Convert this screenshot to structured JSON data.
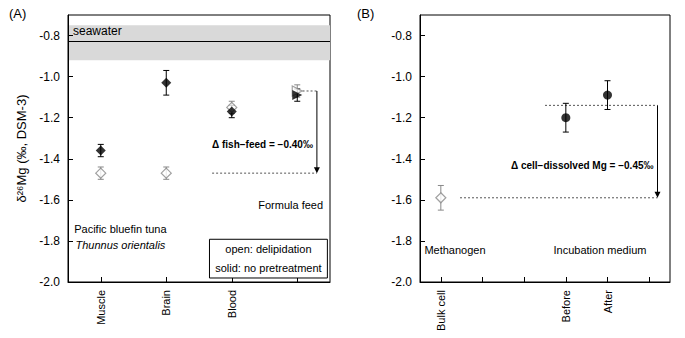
{
  "chart_data": [
    {
      "type": "scatter",
      "title": "(A)",
      "y_label": "δ²⁶Mg (‰, DSM-3)",
      "categories": [
        "Muscle",
        "Brain",
        "Blood",
        null
      ],
      "ylim": [
        -2.0,
        -0.7
      ],
      "yticks": [
        {
          "value": -2.0,
          "label": "-2.0"
        },
        -1.8,
        -1.6,
        -1.4,
        -1.2,
        {
          "value": -1.0,
          "label": "-1.0"
        },
        -0.8
      ],
      "grid": false,
      "legend": "lower right",
      "series": [
        {
          "name": "open: delipidation",
          "marker": "diamond_open",
          "color": "#888888",
          "values": [
            -1.47,
            -1.47,
            -1.15,
            null
          ],
          "errors": [
            0.03,
            0.03,
            0.03,
            null
          ]
        },
        {
          "name": "solid: no pretreatment",
          "marker": "diamond",
          "color": "#000000",
          "values": [
            -1.36,
            -1.03,
            -1.17,
            null
          ],
          "errors": [
            0.03,
            0.06,
            0.03,
            null
          ]
        },
        {
          "marker": "triangle_right_open",
          "color": "#888888",
          "values": [
            null,
            null,
            null,
            -1.07
          ],
          "errors": [
            null,
            null,
            null,
            0.03
          ]
        },
        {
          "marker": "triangle_right",
          "color": "#000000",
          "values": [
            null,
            null,
            null,
            -1.09
          ],
          "errors": [
            null,
            null,
            null,
            0.03
          ]
        }
      ],
      "band": {
        "label": "seawater",
        "value": -0.83,
        "low": -0.92,
        "high": -0.75
      },
      "delta": {
        "label": "Δ fish−feed = −0.40‰",
        "from": -1.07,
        "to": -1.47
      },
      "annotations": [
        "Pacific bluefin tuna",
        "Thunnus orientalis",
        "Formula feed"
      ]
    },
    {
      "type": "scatter",
      "title": "(B)",
      "categories": [
        "Bulk cell",
        null,
        null,
        "Before",
        "After",
        null
      ],
      "ylim": [
        -2.0,
        -0.7
      ],
      "yticks": [
        {
          "value": -2.0,
          "label": "-2.0"
        },
        -1.8,
        -1.6,
        -1.4,
        -1.2,
        {
          "value": -1.0,
          "label": "-1.0"
        },
        -0.8
      ],
      "grid": false,
      "series": [
        {
          "marker": "diamond_open",
          "color": "#888888",
          "values": [
            -1.59,
            null,
            null,
            null,
            null,
            null
          ],
          "errors": [
            0.06,
            null,
            null,
            null,
            null,
            null
          ]
        },
        {
          "marker": "circle",
          "color": "#000000",
          "values": [
            null,
            null,
            null,
            -1.2,
            -1.09,
            null
          ],
          "errors": [
            null,
            null,
            null,
            0.07,
            0.07,
            null
          ]
        }
      ],
      "delta": {
        "label": "Δ cell−dissolved Mg = −0.45‰",
        "from": -1.14,
        "to": -1.59
      },
      "annotations": [
        "Methanogen",
        "Incubation medium"
      ]
    }
  ]
}
